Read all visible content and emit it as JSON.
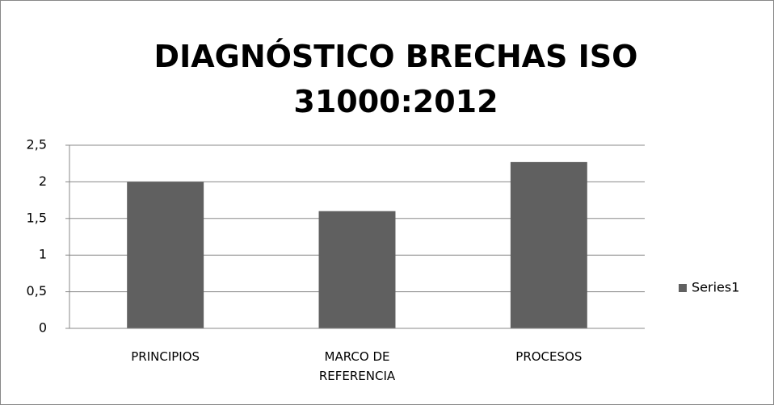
{
  "chart_data": {
    "type": "bar",
    "title": "DIAGNÓSTICO BRECHAS ISO 31000:2012",
    "categories": [
      "PRINCIPIOS",
      "MARCO DE REFERENCIA",
      "PROCESOS"
    ],
    "series": [
      {
        "name": "Series1",
        "color": "#606060",
        "values": [
          2,
          1.6,
          2.27
        ]
      }
    ],
    "ylim": [
      0,
      2.5
    ],
    "yticks": [
      0,
      {
        "value": 0.5,
        "label": "0,5"
      },
      1,
      {
        "value": 1.5,
        "label": "1,5"
      },
      2,
      {
        "value": 2.5,
        "label": "2,5"
      }
    ],
    "grid": true,
    "legend": "right"
  }
}
